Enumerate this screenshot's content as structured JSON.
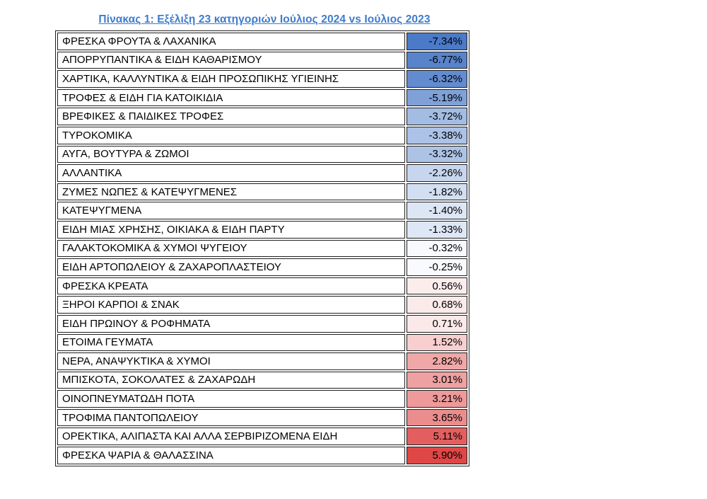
{
  "chart_data": {
    "type": "table",
    "title": "Πίνακας 1: Εξέλιξη 23 κατηγοριών Ιούλιος 2024 vs Ιούλιος 2023",
    "columns": [
      "category",
      "change_percent"
    ],
    "categories": [
      "ΦΡΕΣΚΑ ΦΡΟΥΤΑ & ΛΑΧΑΝΙΚΑ",
      "ΑΠΟΡΡΥΠΑΝΤΙΚΑ & ΕΙΔΗ ΚΑΘΑΡΙΣΜΟΥ",
      "ΧΑΡΤΙΚΑ, ΚΑΛΛΥΝΤΙΚΑ & ΕΙΔΗ ΠΡΟΣΩΠΙΚΗΣ ΥΓΙΕΙΝΗΣ",
      "ΤΡΟΦΕΣ & ΕΙΔΗ ΓΙΑ ΚΑΤΟΙΚΙΔΙΑ",
      "ΒΡΕΦΙΚΕΣ & ΠΑΙΔΙΚΕΣ ΤΡΟΦΕΣ",
      "ΤΥΡΟΚΟΜΙΚΑ",
      "ΑΥΓΑ, ΒΟΥΤΥΡΑ & ΖΩΜΟΙ",
      "ΑΛΛΑΝΤΙΚΑ",
      "ΖΥΜΕΣ ΝΩΠΕΣ & ΚΑΤΕΨΥΓΜΕΝΕΣ",
      "ΚΑΤΕΨΥΓΜΕΝΑ",
      "ΕΙΔΗ ΜΙΑΣ ΧΡΗΣΗΣ, ΟΙΚΙΑΚΑ & ΕΙΔΗ ΠΑΡΤΥ",
      "ΓΑΛΑΚΤΟΚΟΜΙΚΑ & ΧΥΜΟΙ ΨΥΓΕΙΟΥ",
      "ΕΙΔΗ ΑΡΤΟΠΩΛΕΙΟΥ & ΖΑΧΑΡΟΠΛΑΣΤΕΙΟΥ",
      "ΦΡΕΣΚΑ ΚΡΕΑΤΑ",
      "ΞΗΡΟΙ ΚΑΡΠΟΙ & ΣΝΑΚ",
      "ΕΙΔΗ ΠΡΩΙΝΟΥ & ΡΟΦΗΜΑΤΑ",
      "ΕΤΟΙΜΑ ΓΕΥΜΑΤΑ",
      "ΝΕΡΑ, ΑΝΑΨΥΚΤΙΚΑ & ΧΥΜΟΙ",
      "ΜΠΙΣΚΟΤΑ, ΣΟΚΟΛΑΤΕΣ & ΖΑΧΑΡΩΔΗ",
      "ΟΙΝΟΠΝΕΥΜΑΤΩΔΗ ΠΟΤΑ",
      "ΤΡΟΦΙΜΑ ΠΑΝΤΟΠΩΛΕΙΟΥ",
      "ΟΡΕΚΤΙΚΑ, ΑΛΙΠΑΣΤΑ ΚΑΙ ΑΛΛΑ ΣΕΡΒΙΡΙΖΟΜΕΝΑ ΕΙΔΗ",
      "ΦΡΕΣΚΑ ΨΑΡΙΑ & ΘΑΛΑΣΣΙΝΑ"
    ],
    "values": [
      -7.34,
      -6.77,
      -6.32,
      -5.19,
      -3.72,
      -3.38,
      -3.32,
      -2.26,
      -1.82,
      -1.4,
      -1.33,
      -0.32,
      -0.25,
      0.56,
      0.68,
      0.71,
      1.52,
      2.82,
      3.01,
      3.21,
      3.65,
      5.11,
      5.9
    ],
    "values_display": [
      "-7.34%",
      "-6.77%",
      "-6.32%",
      "-5.19%",
      "-3.72%",
      "-3.38%",
      "-3.32%",
      "-2.26%",
      "-1.82%",
      "-1.40%",
      "-1.33%",
      "-0.32%",
      "-0.25%",
      "0.56%",
      "0.68%",
      "0.71%",
      "1.52%",
      "2.82%",
      "3.01%",
      "3.21%",
      "3.65%",
      "5.11%",
      "5.90%"
    ],
    "value_format": "percent",
    "legend_position": "none",
    "grid": true,
    "color_scale": {
      "type": "3-color",
      "min_color": "#4A7AC8",
      "mid_color": "#FFFFFF",
      "max_color": "#DF4646",
      "domain": [
        -7.34,
        0,
        5.9
      ]
    }
  },
  "style_colors": {
    "title_color": "#3D7BCE",
    "border_color": "#1f1f1f",
    "text_color": "#000000",
    "background": "#FFFFFF"
  }
}
